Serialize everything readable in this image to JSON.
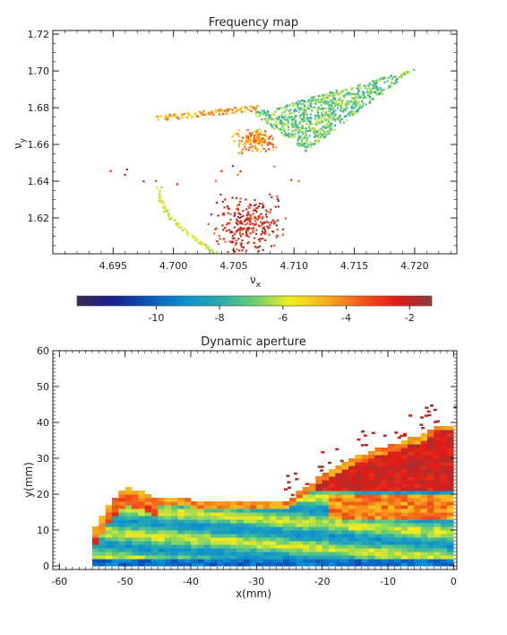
{
  "chart_data": [
    {
      "type": "scatter",
      "title": "Frequency map",
      "xlabel": "ν",
      "xlabel_sub": "x",
      "ylabel": "ν",
      "ylabel_sub": "y",
      "xlim": [
        4.69,
        4.7235
      ],
      "ylim": [
        1.6005,
        1.722
      ],
      "xticks": [
        4.695,
        4.7,
        4.705,
        4.71,
        4.715,
        4.72
      ],
      "xtick_labels": [
        "4.695",
        "4.700",
        "4.705",
        "4.710",
        "4.715",
        "4.720"
      ],
      "yticks": [
        1.62,
        1.64,
        1.66,
        1.68,
        1.7,
        1.72
      ],
      "ytick_labels": [
        "1.62",
        "1.64",
        "1.66",
        "1.68",
        "1.70",
        "1.72"
      ],
      "regions": [
        {
          "name": "main-fan",
          "x_range": [
            4.7065,
            4.72
          ],
          "y_range": [
            1.656,
            1.701
          ],
          "color_value": -7.0
        },
        {
          "name": "upper-branch",
          "x_range": [
            4.6985,
            4.707
          ],
          "y_range": [
            1.669,
            1.68
          ],
          "color_value": -4.5
        },
        {
          "name": "central-cluster",
          "x_range": [
            4.705,
            4.7085
          ],
          "y_range": [
            1.655,
            1.668
          ],
          "color_value": -4.3
        },
        {
          "name": "lower-curve",
          "x_range": [
            4.6985,
            4.704
          ],
          "y_range": [
            1.601,
            1.637
          ],
          "color_value": -6.0
        },
        {
          "name": "lower-cluster",
          "x_range": [
            4.703,
            4.7095
          ],
          "y_range": [
            1.601,
            1.632
          ],
          "color_value": -2.5
        },
        {
          "name": "stray-points",
          "x_range": [
            4.694,
            4.711
          ],
          "y_range": [
            1.638,
            1.649
          ],
          "color_value": -3.0
        }
      ],
      "colorbar": {
        "range": [
          -12.5,
          -1.3
        ],
        "ticks": [
          -10,
          -8,
          -6,
          -4,
          -2
        ],
        "tick_labels": [
          "-10",
          "-8",
          "-6",
          "-4",
          "-2"
        ]
      }
    },
    {
      "type": "heatmap",
      "title": "Dynamic aperture",
      "xlabel": "x(mm)",
      "ylabel": "y(mm)",
      "xlim": [
        -61,
        0.5
      ],
      "ylim": [
        -1,
        60
      ],
      "xticks": [
        -60,
        -50,
        -40,
        -30,
        -20,
        -10,
        0
      ],
      "xtick_labels": [
        "-60",
        "-50",
        "-40",
        "-30",
        "-20",
        "-10",
        "0"
      ],
      "yticks": [
        0,
        10,
        20,
        30,
        40,
        50,
        60
      ],
      "ytick_labels": [
        "0",
        "10",
        "20",
        "30",
        "40",
        "50",
        "60"
      ],
      "boundary": {
        "x": [
          -55.5,
          -54,
          -52,
          -50,
          -48,
          -45,
          -40,
          -35,
          -30,
          -25,
          -20,
          -15,
          -10,
          -5,
          -2.5,
          0
        ],
        "y": [
          7,
          12,
          18,
          21.5,
          20.5,
          18.5,
          18,
          17.5,
          17,
          18,
          25,
          30,
          33,
          36,
          39,
          39
        ]
      }
    }
  ],
  "colors": {
    "colormap": [
      "#3b2a52",
      "#1a1e8c",
      "#0b54b8",
      "#0d8fcf",
      "#27a9b0",
      "#6ccf74",
      "#f2ef1e",
      "#f9b21e",
      "#f25a1a",
      "#e31a16",
      "#8b3a3a"
    ]
  }
}
